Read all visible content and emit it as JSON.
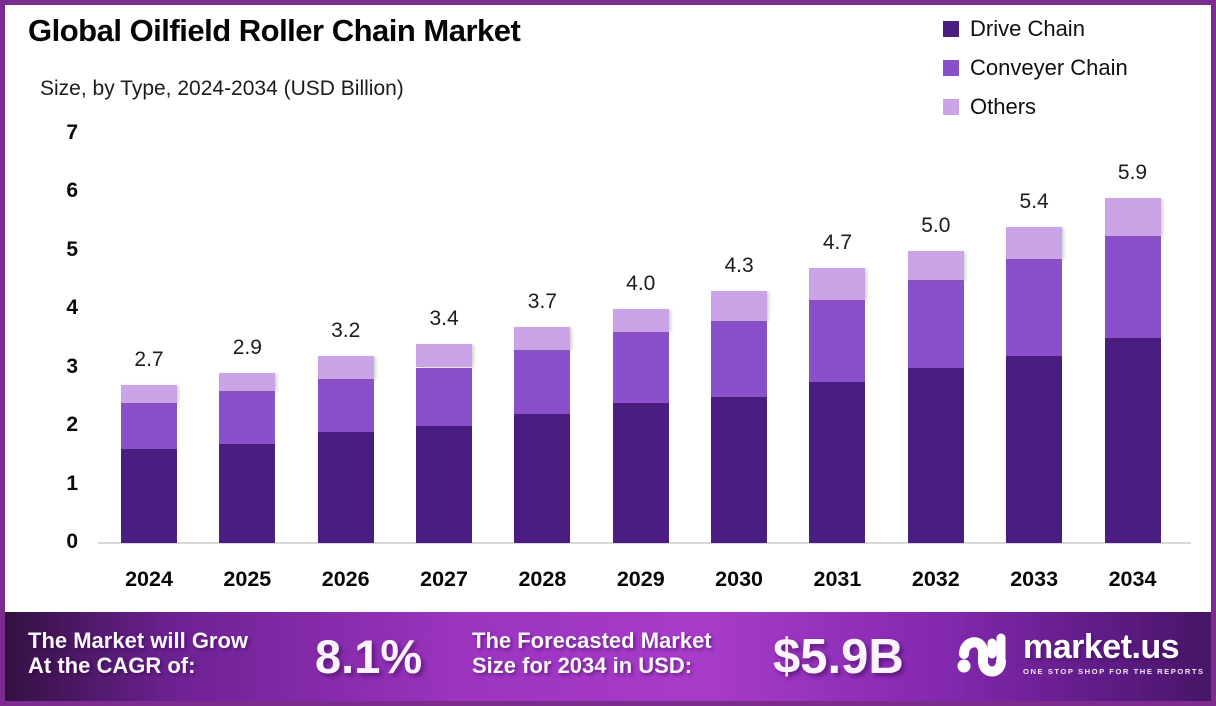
{
  "frame": {
    "border_color": "#7c2b8f",
    "background": "#ffffff"
  },
  "header": {
    "title": "Global Oilfield Roller Chain Market",
    "subtitle": "Size, by Type, 2024-2034 (USD Billion)"
  },
  "legend": {
    "items": [
      {
        "label": "Drive Chain",
        "color": "#4a1d80"
      },
      {
        "label": "Conveyer Chain",
        "color": "#8a50cc"
      },
      {
        "label": "Others",
        "color": "#cba4e7"
      }
    ]
  },
  "chart_data": {
    "type": "bar",
    "stacked": true,
    "title": "Global Oilfield Roller Chain Market Size, by Type, 2024-2034 (USD Billion)",
    "categories": [
      "2024",
      "2025",
      "2026",
      "2027",
      "2028",
      "2029",
      "2030",
      "2031",
      "2032",
      "2033",
      "2034"
    ],
    "series": [
      {
        "name": "Drive Chain",
        "color": "#4a1d80",
        "values": [
          1.6,
          1.7,
          1.9,
          2.0,
          2.2,
          2.4,
          2.5,
          2.75,
          3.0,
          3.2,
          3.5
        ]
      },
      {
        "name": "Conveyer Chain",
        "color": "#8a50cc",
        "values": [
          0.8,
          0.9,
          0.9,
          1.0,
          1.1,
          1.2,
          1.3,
          1.4,
          1.5,
          1.65,
          1.75
        ]
      },
      {
        "name": "Others",
        "color": "#cba4e7",
        "values": [
          0.3,
          0.3,
          0.4,
          0.4,
          0.4,
          0.4,
          0.5,
          0.55,
          0.5,
          0.55,
          0.65
        ]
      }
    ],
    "totals_labels": [
      "2.7",
      "2.9",
      "3.2",
      "3.4",
      "3.7",
      "4.0",
      "4.3",
      "4.7",
      "5.0",
      "5.4",
      "5.9"
    ],
    "xlabel": "",
    "ylabel": "",
    "ylim": [
      0,
      7
    ],
    "yticks": [
      0,
      1,
      2,
      3,
      4,
      5,
      6,
      7
    ],
    "grid": false,
    "legend_position": "top-right"
  },
  "footer": {
    "cagr_line1": "The Market will Grow",
    "cagr_line2": "At the CAGR of:",
    "cagr_value": "8.1%",
    "forecast_line1": "The Forecasted Market",
    "forecast_line2": "Size for 2034 in USD:",
    "forecast_value": "$5.9B",
    "logo_text": "market.us",
    "logo_tagline": "ONE STOP SHOP FOR THE REPORTS"
  }
}
